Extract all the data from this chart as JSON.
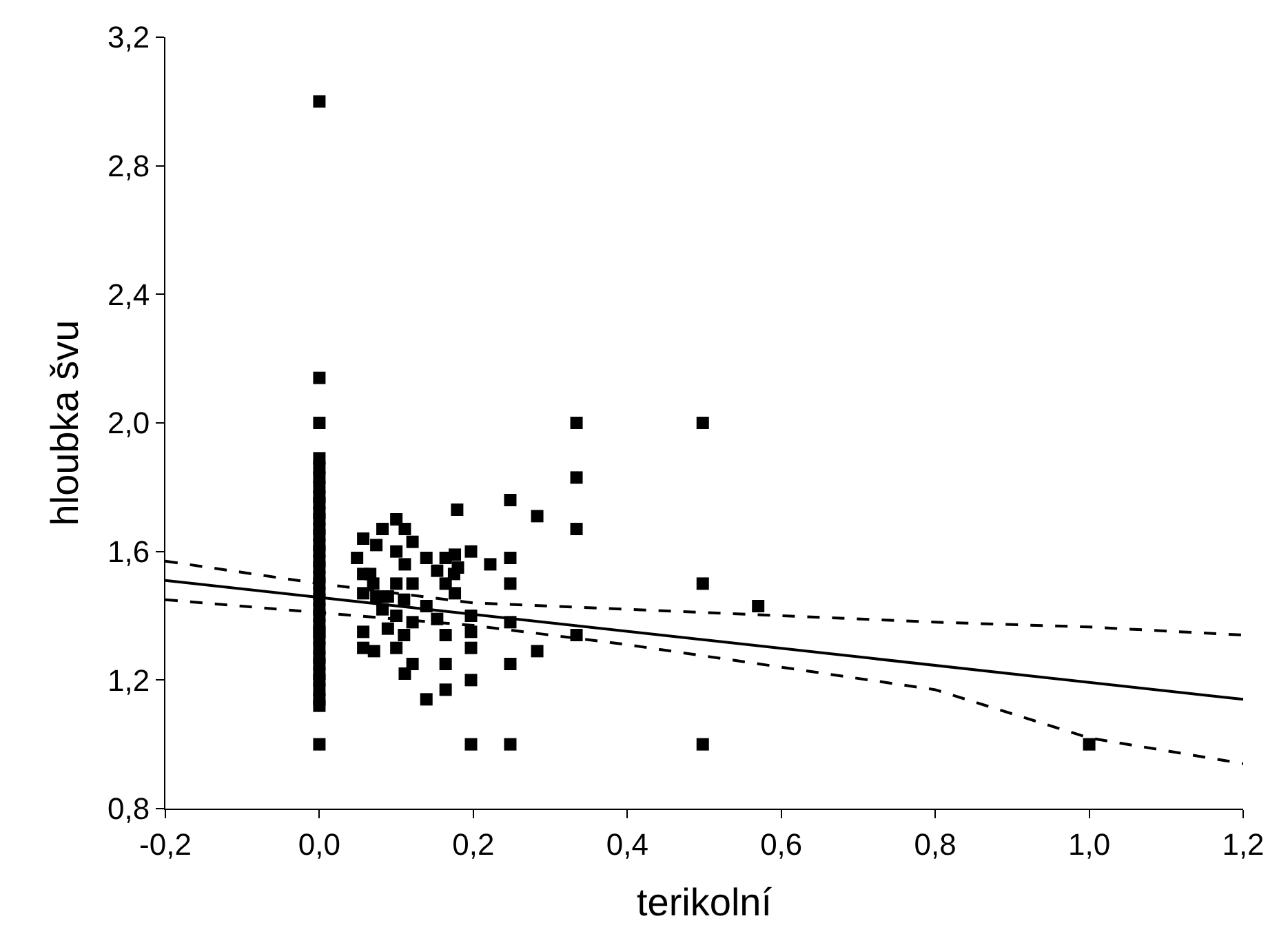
{
  "chart_data": {
    "type": "scatter",
    "xlabel": "terikolní",
    "ylabel": "hloubka švu",
    "xlim": [
      -0.2,
      1.2
    ],
    "ylim": [
      0.8,
      3.2
    ],
    "xticks": [
      {
        "value": -0.2,
        "label": "-0,2"
      },
      {
        "value": 0,
        "label": "0,0"
      },
      {
        "value": 0.2,
        "label": "0,2"
      },
      {
        "value": 0.4,
        "label": "0,4"
      },
      {
        "value": 0.6,
        "label": "0,6"
      },
      {
        "value": 0.8,
        "label": "0,8"
      },
      {
        "value": 1.0,
        "label": "1,0"
      },
      {
        "value": 1.2,
        "label": "1,2"
      }
    ],
    "yticks": [
      {
        "value": 0.8,
        "label": "0,8"
      },
      {
        "value": 1.2,
        "label": "1,2"
      },
      {
        "value": 1.6,
        "label": "1,6"
      },
      {
        "value": 2.0,
        "label": "2,0"
      },
      {
        "value": 2.4,
        "label": "2,4"
      },
      {
        "value": 2.8,
        "label": "2,8"
      },
      {
        "value": 3.2,
        "label": "3,2"
      }
    ],
    "grid": false,
    "marker": "square",
    "series": [
      {
        "color": "#000000",
        "x": [
          0,
          0,
          0,
          0,
          0,
          0,
          0,
          0,
          0,
          0,
          0,
          0,
          0,
          0,
          0,
          0,
          0,
          0,
          0,
          0,
          0,
          0,
          0,
          0,
          0,
          0,
          0,
          0,
          0,
          0,
          0,
          0,
          0,
          0,
          0,
          0.057,
          0.082,
          0.1,
          0.111,
          0.121,
          0.074,
          0.049,
          0.1,
          0.111,
          0.139,
          0.153,
          0.164,
          0.176,
          0.179,
          0.197,
          0.18,
          0.175,
          0.222,
          0.248,
          0.248,
          0.283,
          0.057,
          0.066,
          0.07,
          0.1,
          0.121,
          0.164,
          0.248,
          0.057,
          0.074,
          0.089,
          0.11,
          0.176,
          0.082,
          0.1,
          0.139,
          0.121,
          0.153,
          0.197,
          0.197,
          0.248,
          0.089,
          0.057,
          0.11,
          0.164,
          0.057,
          0.071,
          0.1,
          0.197,
          0.121,
          0.164,
          0.248,
          0.283,
          0.111,
          0.197,
          0.164,
          0.139,
          0.197,
          0.248,
          0.334,
          0.498,
          0.334,
          0.334,
          0.498,
          0.57,
          0.334,
          0.498,
          1.0
        ],
        "values": [
          3.0,
          2.14,
          2.0,
          1.89,
          1.86,
          1.83,
          1.8,
          1.77,
          1.75,
          1.72,
          1.7,
          1.67,
          1.65,
          1.62,
          1.6,
          1.57,
          1.55,
          1.52,
          1.5,
          1.47,
          1.45,
          1.42,
          1.4,
          1.37,
          1.35,
          1.33,
          1.3,
          1.27,
          1.25,
          1.22,
          1.2,
          1.17,
          1.14,
          1.12,
          1.0,
          1.64,
          1.67,
          1.7,
          1.67,
          1.63,
          1.62,
          1.58,
          1.6,
          1.56,
          1.58,
          1.54,
          1.58,
          1.59,
          1.73,
          1.6,
          1.55,
          1.53,
          1.56,
          1.76,
          1.58,
          1.71,
          1.53,
          1.53,
          1.5,
          1.5,
          1.5,
          1.5,
          1.5,
          1.47,
          1.46,
          1.46,
          1.45,
          1.47,
          1.42,
          1.4,
          1.43,
          1.38,
          1.39,
          1.4,
          1.35,
          1.38,
          1.36,
          1.35,
          1.34,
          1.34,
          1.3,
          1.29,
          1.3,
          1.3,
          1.25,
          1.25,
          1.25,
          1.29,
          1.22,
          1.2,
          1.17,
          1.14,
          1.0,
          1.0,
          2.0,
          2.0,
          1.83,
          1.67,
          1.5,
          1.43,
          1.34,
          1.0,
          1.0
        ]
      },
      {
        "type": "line",
        "color": "#000000",
        "line_style": "solid",
        "marker": "none",
        "x": [
          -0.2,
          1.2
        ],
        "values": [
          1.51,
          1.14
        ]
      },
      {
        "type": "line",
        "color": "#000000",
        "line_style": "dashed",
        "marker": "none",
        "x": [
          -0.2,
          0,
          0.2,
          0.4,
          0.6,
          0.8,
          1.0,
          1.2
        ],
        "values": [
          1.57,
          1.5,
          1.44,
          1.42,
          1.4,
          1.38,
          1.365,
          1.34
        ]
      },
      {
        "type": "line",
        "color": "#000000",
        "line_style": "dashed",
        "marker": "none",
        "x": [
          -0.2,
          0,
          0.2,
          0.4,
          0.6,
          0.8,
          1.0,
          1.2
        ],
        "values": [
          1.45,
          1.41,
          1.37,
          1.31,
          1.24,
          1.17,
          1.02,
          0.94
        ]
      }
    ]
  }
}
